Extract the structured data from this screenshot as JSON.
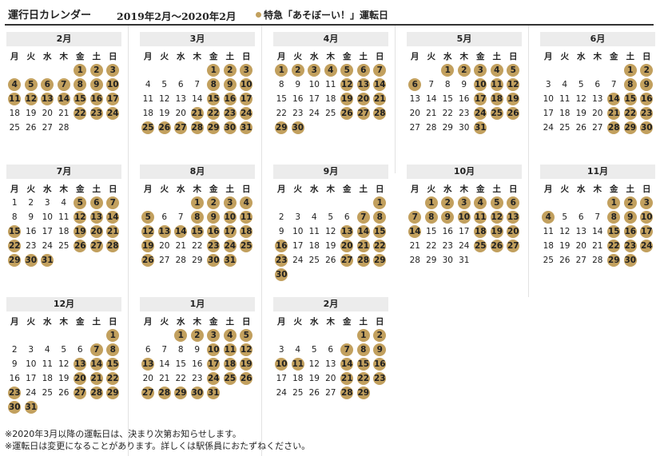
{
  "title": "運行日カレンダー",
  "period": "2019年2月〜2020年2月",
  "legend": {
    "marker": "●",
    "text": "特急「あそぼーい！」運転日"
  },
  "colors": {
    "operation": "#c2a05e",
    "header_bg": "#ececec"
  },
  "weekdays": [
    "月",
    "火",
    "水",
    "木",
    "金",
    "土",
    "日"
  ],
  "months": [
    {
      "label": "2月",
      "offset": 4,
      "days": 28,
      "op": [
        1,
        2,
        3,
        4,
        5,
        6,
        7,
        8,
        9,
        10,
        11,
        12,
        13,
        14,
        15,
        16,
        17,
        22,
        23,
        24
      ]
    },
    {
      "label": "3月",
      "offset": 4,
      "days": 31,
      "op": [
        1,
        2,
        3,
        8,
        9,
        10,
        15,
        16,
        17,
        21,
        22,
        23,
        24,
        25,
        26,
        27,
        28,
        29,
        30,
        31
      ]
    },
    {
      "label": "4月",
      "offset": 0,
      "days": 30,
      "op": [
        1,
        2,
        3,
        4,
        5,
        6,
        7,
        12,
        13,
        14,
        19,
        20,
        21,
        26,
        27,
        28,
        29,
        30
      ]
    },
    {
      "label": "5月",
      "offset": 2,
      "days": 31,
      "op": [
        1,
        2,
        3,
        4,
        5,
        6,
        10,
        11,
        12,
        17,
        18,
        19,
        24,
        25,
        26,
        31
      ]
    },
    {
      "label": "6月",
      "offset": 5,
      "days": 30,
      "op": [
        1,
        2,
        8,
        9,
        14,
        15,
        16,
        21,
        22,
        23,
        28,
        29,
        30
      ]
    },
    {
      "label": "7月",
      "offset": 0,
      "days": 31,
      "op": [
        5,
        6,
        7,
        12,
        13,
        14,
        15,
        19,
        20,
        21,
        22,
        26,
        27,
        28,
        29,
        30,
        31
      ]
    },
    {
      "label": "8月",
      "offset": 3,
      "days": 31,
      "op": [
        1,
        2,
        3,
        4,
        5,
        8,
        9,
        10,
        11,
        12,
        13,
        14,
        15,
        16,
        17,
        18,
        19,
        23,
        24,
        25,
        26,
        30,
        31
      ]
    },
    {
      "label": "9月",
      "offset": 6,
      "days": 30,
      "op": [
        1,
        7,
        8,
        13,
        14,
        15,
        16,
        20,
        21,
        22,
        23,
        27,
        28,
        29,
        30
      ]
    },
    {
      "label": "10月",
      "offset": 1,
      "days": 31,
      "op": [
        1,
        2,
        3,
        4,
        5,
        6,
        7,
        8,
        9,
        10,
        11,
        12,
        13,
        14,
        18,
        19,
        20,
        25,
        26,
        27
      ]
    },
    {
      "label": "11月",
      "offset": 4,
      "days": 30,
      "op": [
        1,
        2,
        3,
        4,
        8,
        9,
        10,
        15,
        16,
        17,
        22,
        23,
        24,
        29,
        30
      ]
    },
    {
      "label": "12月",
      "offset": 6,
      "days": 31,
      "op": [
        1,
        7,
        8,
        13,
        14,
        15,
        20,
        21,
        22,
        23,
        27,
        28,
        29,
        30,
        31
      ]
    },
    {
      "label": "1月",
      "offset": 2,
      "days": 31,
      "op": [
        1,
        2,
        3,
        4,
        5,
        10,
        11,
        12,
        13,
        17,
        18,
        19,
        24,
        25,
        26,
        27,
        28,
        29,
        30,
        31
      ]
    },
    {
      "label": "2月",
      "offset": 5,
      "days": 29,
      "op": [
        1,
        2,
        7,
        8,
        9,
        10,
        11,
        14,
        15,
        16,
        21,
        22,
        23,
        28,
        29
      ]
    }
  ],
  "notes": [
    "※2020年3月以降の運転日は、決まり次第お知らせします。",
    "※運転日は変更になることがあります。詳しくは駅係員におたずねください。"
  ]
}
